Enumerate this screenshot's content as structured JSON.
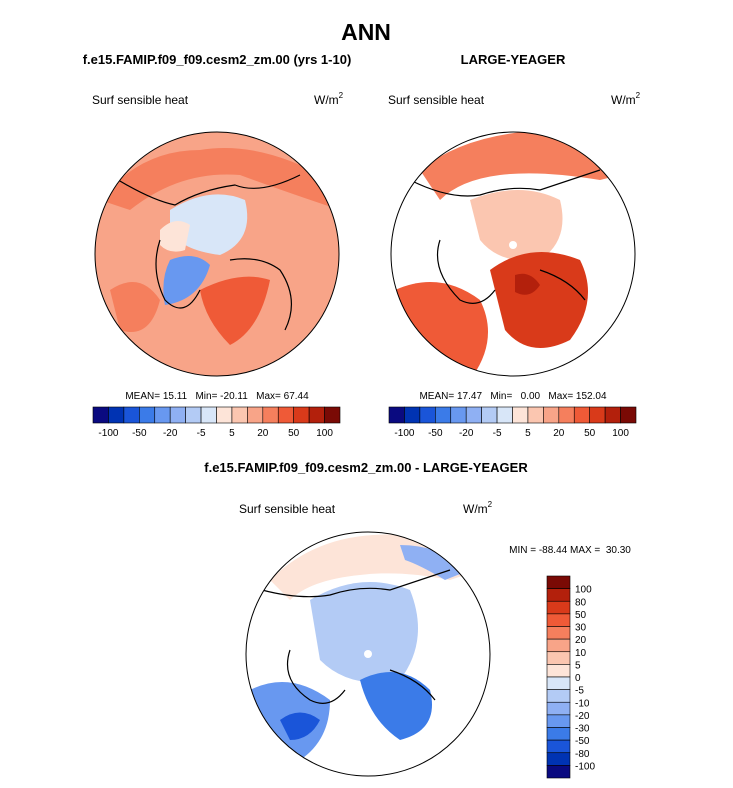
{
  "title": "ANN",
  "panels": [
    {
      "title": "f.e15.FAMIP.f09_f09.cesm2_zm.00 (yrs 1-10)",
      "variable": "Surf sensible heat",
      "units": "W/m",
      "units_exp": "2",
      "stats": "MEAN= 15.11   Min= -20.11   Max= 67.44",
      "colorbar": {
        "labels": [
          -100,
          -50,
          -20,
          -5,
          5,
          20,
          50,
          100
        ],
        "colors": [
          "#0a0a80",
          "#0033b3",
          "#1a55d9",
          "#3b7be8",
          "#6898f0",
          "#8fb0f3",
          "#b3cbf5",
          "#d8e6f8",
          "#fde4d8",
          "#fbc6b0",
          "#f8a488",
          "#f57f5d",
          "#ef5a37",
          "#d93a1a",
          "#b3200c",
          "#7a0a05"
        ]
      }
    },
    {
      "title": "LARGE-YEAGER",
      "variable": "Surf sensible heat",
      "units": "W/m",
      "units_exp": "2",
      "stats": "MEAN= 17.47   Min=   0.00   Max= 152.04",
      "colorbar": {
        "labels": [
          -100,
          -50,
          -20,
          -5,
          5,
          20,
          50,
          100
        ],
        "colors": [
          "#0a0a80",
          "#0033b3",
          "#1a55d9",
          "#3b7be8",
          "#6898f0",
          "#8fb0f3",
          "#b3cbf5",
          "#d8e6f8",
          "#fde4d8",
          "#fbc6b0",
          "#f8a488",
          "#f57f5d",
          "#ef5a37",
          "#d93a1a",
          "#b3200c",
          "#7a0a05"
        ]
      }
    }
  ],
  "difference": {
    "title": "f.e15.FAMIP.f09_f09.cesm2_zm.00 - LARGE-YEAGER",
    "variable": "Surf sensible heat",
    "units": "W/m",
    "units_exp": "2",
    "stats": "MIN = -88.44 MAX =  30.30",
    "colorbar": {
      "labels": [
        100,
        80,
        50,
        30,
        20,
        10,
        5,
        0,
        -5,
        -10,
        -20,
        -30,
        -50,
        -80,
        -100
      ],
      "colors": [
        "#7a0a05",
        "#b3200c",
        "#d93a1a",
        "#ef5a37",
        "#f57f5d",
        "#f8a488",
        "#fbc6b0",
        "#fde4d8",
        "#d8e6f8",
        "#b3cbf5",
        "#8fb0f3",
        "#6898f0",
        "#3b7be8",
        "#1a55d9",
        "#0033b3",
        "#0a0a80"
      ]
    }
  }
}
